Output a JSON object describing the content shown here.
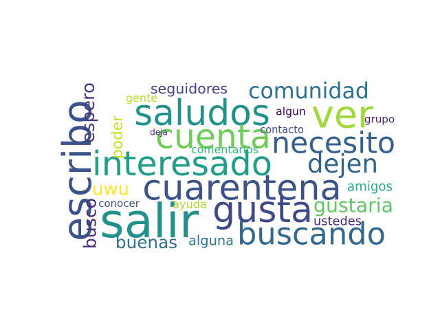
{
  "word_cloud": {
    "words": [
      {
        "text": "escribo",
        "color": "#3b528b"
      },
      {
        "text": "cuarentena",
        "color": "#3b528b"
      },
      {
        "text": "interesado",
        "color": "#1f9e89"
      },
      {
        "text": "salir",
        "color": "#21918c"
      },
      {
        "text": "gusta",
        "color": "#3e4a89"
      },
      {
        "text": "buscando",
        "color": "#31688e"
      },
      {
        "text": "saludos",
        "color": "#21918c"
      },
      {
        "text": "ver",
        "color": "#a0da39"
      },
      {
        "text": "cuenta",
        "color": "#6ece58"
      },
      {
        "text": "necesito",
        "color": "#35608d"
      },
      {
        "text": "comunidad",
        "color": "#2c728e"
      },
      {
        "text": "dejen",
        "color": "#33638d"
      },
      {
        "text": "poder",
        "color": "#c8e020"
      },
      {
        "text": "espero",
        "color": "#443983"
      },
      {
        "text": "uwu",
        "color": "#fde725"
      },
      {
        "text": "busco",
        "color": "#472c7a"
      },
      {
        "text": "buenas",
        "color": "#2d708e"
      },
      {
        "text": "gustaria",
        "color": "#5ec962"
      },
      {
        "text": "seguidores",
        "color": "#414487"
      },
      {
        "text": "amigos",
        "color": "#28ae80"
      },
      {
        "text": "alguna",
        "color": "#2a788e"
      },
      {
        "text": "ayuda",
        "color": "#addc30"
      },
      {
        "text": "ustedes",
        "color": "#482878"
      },
      {
        "text": "contacto",
        "color": "#3b528b"
      },
      {
        "text": "algun",
        "color": "#440154"
      },
      {
        "text": "grupo",
        "color": "#481f70"
      },
      {
        "text": "gente",
        "color": "#b5de2b"
      },
      {
        "text": "deja",
        "color": "#482475"
      },
      {
        "text": "comentarios",
        "color": "#35b779"
      },
      {
        "text": "conocer",
        "color": "#3b528b"
      }
    ]
  }
}
